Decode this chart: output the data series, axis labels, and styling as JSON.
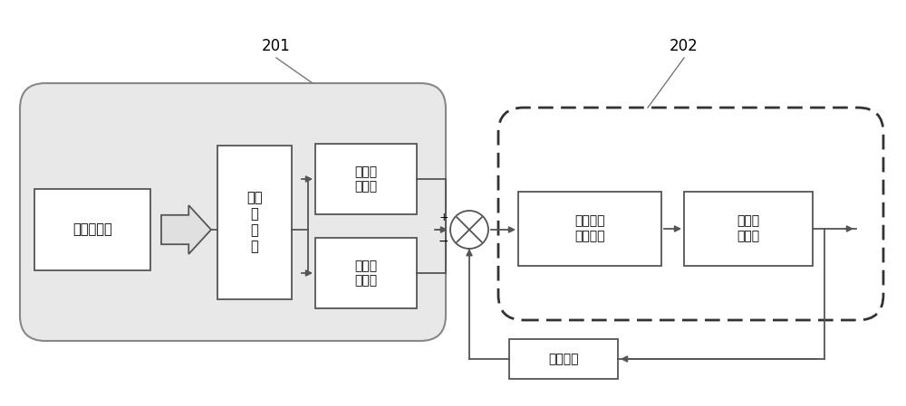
{
  "bg_color": "#ffffff",
  "line_color": "#555555",
  "label_201": "201",
  "label_202": "202",
  "box1_text": "医生操作力",
  "box2_text": "滑动\n操\n作\n套",
  "box3_text": "旋捩位\n置指令",
  "box4_text": "推进位\n置指令",
  "box5_text": "自适应滑\n模控制器",
  "box6_text": "递进机\n构模型",
  "box7_text": "位置反馈",
  "plus_sign": "+",
  "minus_sign": "−"
}
